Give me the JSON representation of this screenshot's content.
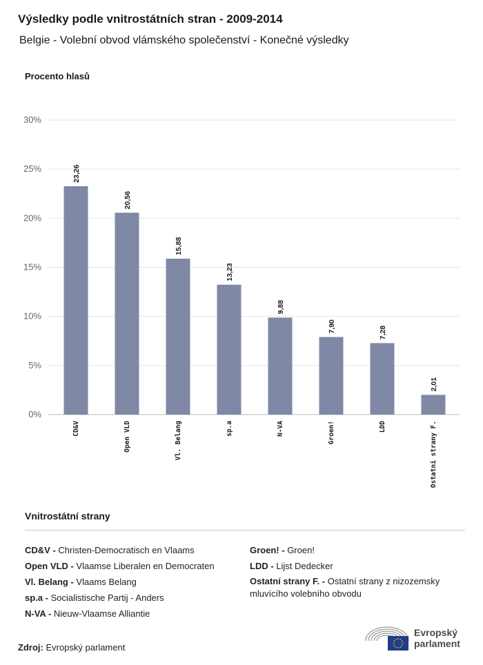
{
  "title": "Výsledky podle vnitrostátních stran - 2009-2014",
  "subtitle": "Belgie - Volební obvod vlámského společenství - Konečné výsledky",
  "chart_data": {
    "type": "bar",
    "ylabel": "Procento hlasů",
    "categories": [
      "CD&V",
      "Open VLD",
      "Vl. Belang",
      "sp.a",
      "N-VA",
      "Groen!",
      "LDD",
      "Ostatní strany F."
    ],
    "values": [
      23.26,
      20.56,
      15.88,
      13.23,
      9.88,
      7.9,
      7.28,
      2.01
    ],
    "value_labels": [
      "23,26",
      "20,56",
      "15,88",
      "13,23",
      "9,88",
      "7,90",
      "7,28",
      "2,01"
    ],
    "ylim": [
      0,
      30
    ],
    "yticks": [
      0,
      5,
      10,
      15,
      20,
      25,
      30
    ],
    "ytick_labels": [
      "0%",
      "5%",
      "10%",
      "15%",
      "20%",
      "25%",
      "30%"
    ],
    "grid": true,
    "bar_color": "#7f88a5"
  },
  "legend": {
    "title": "Vnitrostátní strany",
    "left": [
      {
        "abbr": "CD&V -",
        "name": "Christen-Democratisch en Vlaams"
      },
      {
        "abbr": "Open VLD -",
        "name": "Vlaamse Liberalen en Democraten"
      },
      {
        "abbr": "Vl. Belang -",
        "name": "Vlaams Belang"
      },
      {
        "abbr": "sp.a -",
        "name": "Socialistische Partij - Anders"
      },
      {
        "abbr": "N-VA -",
        "name": "Nieuw-Vlaamse Alliantie"
      }
    ],
    "right": [
      {
        "abbr": "Groen! -",
        "name": "Groen!"
      },
      {
        "abbr": "LDD -",
        "name": "Lijst Dedecker"
      },
      {
        "abbr": "Ostatní strany F. -",
        "name": "Ostatní strany z nizozemsky mluvícího volebního obvodu"
      }
    ]
  },
  "source": {
    "label": "Zdroj:",
    "text": "Evropský parlament"
  },
  "logo": {
    "line1": "Evropský",
    "line2": "parlament",
    "icon": "european-parliament-hemicycle-icon",
    "flag_color": "#1f3d8a",
    "star_color": "#f2c200"
  }
}
